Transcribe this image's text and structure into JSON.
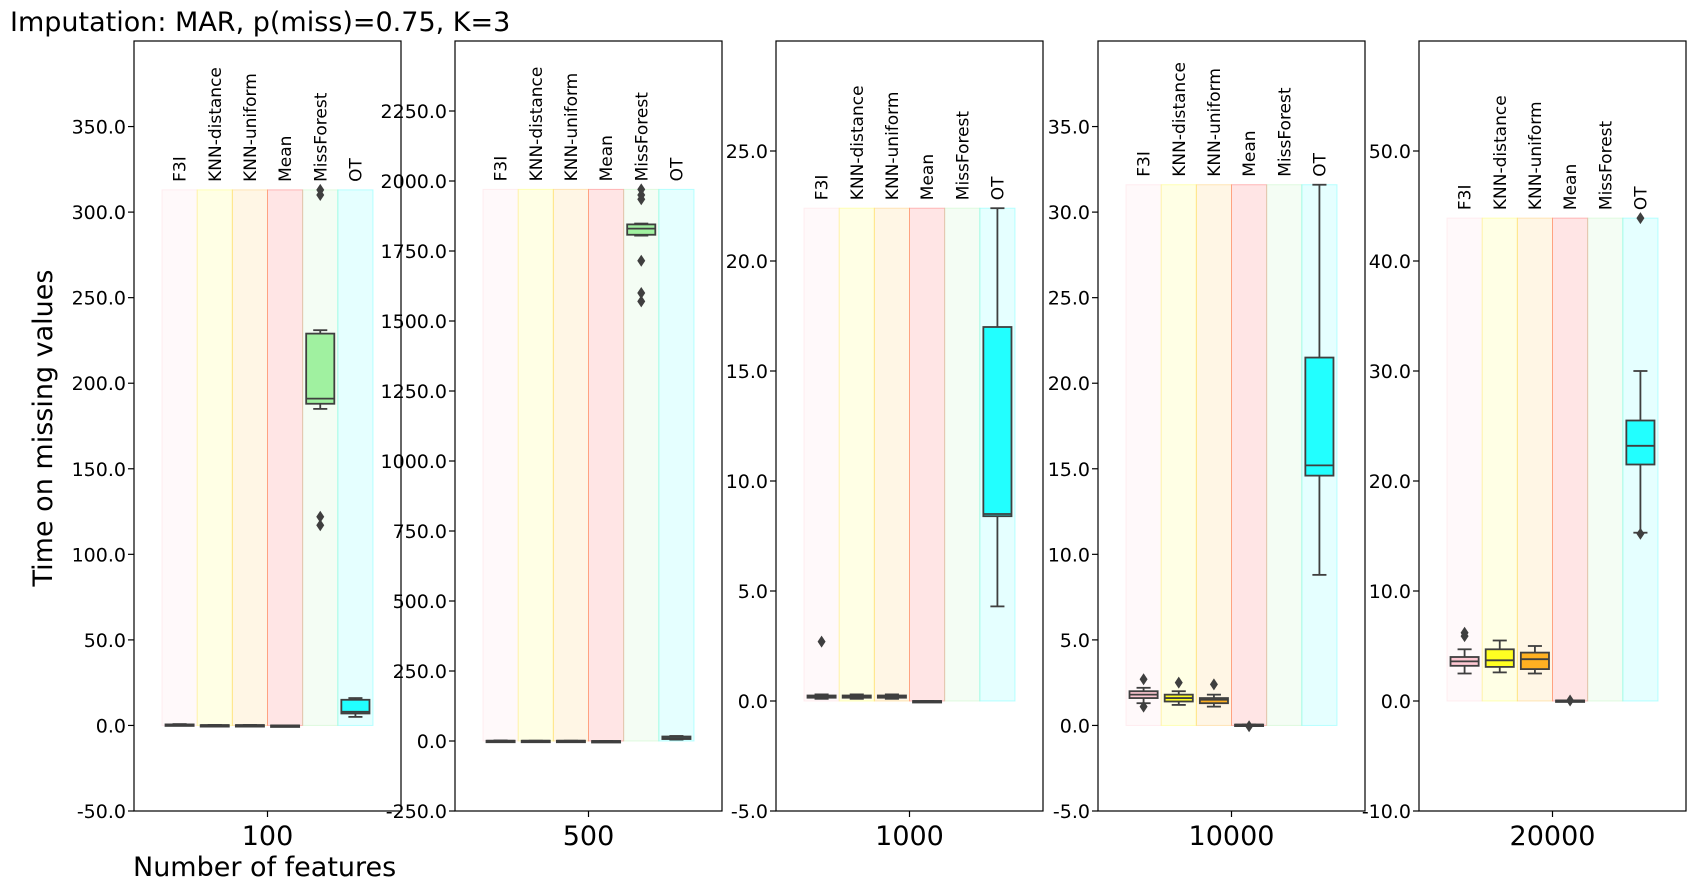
{
  "title": "Imputation: MAR, p(miss)=0.75, K=3",
  "ylabel": "Time on missing values",
  "xlabel": "Number of features",
  "methods": [
    "F3I",
    "KNN-distance",
    "KNN-uniform",
    "Mean",
    "MissForest",
    "OT"
  ],
  "colors": {
    "F3I": "#ffc0cb",
    "KNN-distance": "#ffff00",
    "KNN-uniform": "#ffa500",
    "Mean": "#ff0000",
    "MissForest": "#90ee90",
    "OT": "#00ffff",
    "box_edge": "#3f3f3f"
  },
  "chart_data": [
    {
      "type": "box",
      "category": "100",
      "ylim": [
        -50,
        400
      ],
      "yticks": [
        "-50.0",
        "0.0",
        "50.0",
        "100.0",
        "150.0",
        "200.0",
        "250.0",
        "300.0",
        "350.0"
      ],
      "band_top": 313,
      "boxes": [
        {
          "method": "F3I",
          "whislo": 0.2,
          "q1": 0.4,
          "med": 0.5,
          "q3": 0.6,
          "whishi": 0.8,
          "fliers": []
        },
        {
          "method": "KNN-distance",
          "whislo": 0.1,
          "q1": 0.1,
          "med": 0.2,
          "q3": 0.2,
          "whishi": 0.3,
          "fliers": []
        },
        {
          "method": "KNN-uniform",
          "whislo": 0.1,
          "q1": 0.1,
          "med": 0.2,
          "q3": 0.2,
          "whishi": 0.3,
          "fliers": []
        },
        {
          "method": "Mean",
          "whislo": 0.0,
          "q1": 0.0,
          "med": 0.0,
          "q3": 0.0,
          "whishi": 0.0,
          "fliers": []
        },
        {
          "method": "MissForest",
          "whislo": 185,
          "q1": 188,
          "med": 191,
          "q3": 229,
          "whishi": 231,
          "fliers": [
            117,
            122,
            310,
            313
          ]
        },
        {
          "method": "OT",
          "whislo": 5,
          "q1": 7,
          "med": 8,
          "q3": 15,
          "whishi": 16,
          "fliers": []
        }
      ]
    },
    {
      "type": "box",
      "category": "500",
      "ylim": [
        -250,
        2500
      ],
      "yticks": [
        "-250.0",
        "0.0",
        "250.0",
        "500.0",
        "750.0",
        "1000.0",
        "1250.0",
        "1500.0",
        "1750.0",
        "2000.0",
        "2250.0"
      ],
      "band_top": 1970,
      "boxes": [
        {
          "method": "F3I",
          "whislo": 0,
          "q1": 0,
          "med": 1,
          "q3": 1,
          "whishi": 2,
          "fliers": []
        },
        {
          "method": "KNN-distance",
          "whislo": 0,
          "q1": 0,
          "med": 1,
          "q3": 1,
          "whishi": 1,
          "fliers": []
        },
        {
          "method": "KNN-uniform",
          "whislo": 0,
          "q1": 0,
          "med": 1,
          "q3": 1,
          "whishi": 1,
          "fliers": []
        },
        {
          "method": "Mean",
          "whislo": 0,
          "q1": 0,
          "med": 0,
          "q3": 0,
          "whishi": 0,
          "fliers": []
        },
        {
          "method": "MissForest",
          "whislo": 1805,
          "q1": 1808,
          "med": 1830,
          "q3": 1845,
          "whishi": 1848,
          "fliers": [
            1570,
            1600,
            1715,
            1935,
            1950,
            1970
          ]
        },
        {
          "method": "OT",
          "whislo": 5,
          "q1": 7,
          "med": 10,
          "q3": 16,
          "whishi": 18,
          "fliers": []
        }
      ]
    },
    {
      "type": "box",
      "category": "1000",
      "ylim": [
        -5,
        30
      ],
      "yticks": [
        "-5.0",
        "0.0",
        "5.0",
        "10.0",
        "15.0",
        "20.0",
        "25.0"
      ],
      "band_top": 22.4,
      "boxes": [
        {
          "method": "F3I",
          "whislo": 0.1,
          "q1": 0.15,
          "med": 0.2,
          "q3": 0.25,
          "whishi": 0.3,
          "fliers": [
            2.7
          ]
        },
        {
          "method": "KNN-distance",
          "whislo": 0.1,
          "q1": 0.15,
          "med": 0.2,
          "q3": 0.25,
          "whishi": 0.3,
          "fliers": []
        },
        {
          "method": "KNN-uniform",
          "whislo": 0.1,
          "q1": 0.15,
          "med": 0.2,
          "q3": 0.25,
          "whishi": 0.3,
          "fliers": []
        },
        {
          "method": "Mean",
          "whislo": 0.0,
          "q1": 0.0,
          "med": 0.0,
          "q3": 0.0,
          "whishi": 0.0,
          "fliers": []
        },
        {
          "method": "MissForest",
          "whislo": null,
          "q1": null,
          "med": null,
          "q3": null,
          "whishi": null,
          "fliers": []
        },
        {
          "method": "OT",
          "whislo": 4.3,
          "q1": 8.4,
          "med": 8.5,
          "q3": 17.0,
          "whishi": 22.4,
          "fliers": []
        }
      ]
    },
    {
      "type": "box",
      "category": "10000",
      "ylim": [
        -5,
        40
      ],
      "yticks": [
        "-5.0",
        "0.0",
        "5.0",
        "10.0",
        "15.0",
        "20.0",
        "25.0",
        "30.0",
        "35.0"
      ],
      "band_top": 31.6,
      "boxes": [
        {
          "method": "F3I",
          "whislo": 1.3,
          "q1": 1.6,
          "med": 1.8,
          "q3": 2.0,
          "whishi": 2.2,
          "fliers": [
            1.1,
            2.7
          ]
        },
        {
          "method": "KNN-distance",
          "whislo": 1.2,
          "q1": 1.4,
          "med": 1.6,
          "q3": 1.8,
          "whishi": 2.0,
          "fliers": [
            2.5
          ]
        },
        {
          "method": "KNN-uniform",
          "whislo": 1.1,
          "q1": 1.3,
          "med": 1.5,
          "q3": 1.6,
          "whishi": 1.8,
          "fliers": [
            2.4
          ]
        },
        {
          "method": "Mean",
          "whislo": 0.05,
          "q1": 0.05,
          "med": 0.05,
          "q3": 0.05,
          "whishi": 0.05,
          "fliers": [
            -0.05
          ]
        },
        {
          "method": "MissForest",
          "whislo": null,
          "q1": null,
          "med": null,
          "q3": null,
          "whishi": null,
          "fliers": []
        },
        {
          "method": "OT",
          "whislo": 8.8,
          "q1": 14.6,
          "med": 15.2,
          "q3": 21.5,
          "whishi": 31.6,
          "fliers": []
        }
      ]
    },
    {
      "type": "box",
      "category": "20000",
      "ylim": [
        -10,
        60
      ],
      "yticks": [
        "-10.0",
        "0.0",
        "10.0",
        "20.0",
        "30.0",
        "40.0",
        "50.0"
      ],
      "band_top": 43.9,
      "boxes": [
        {
          "method": "F3I",
          "whislo": 2.5,
          "q1": 3.2,
          "med": 3.6,
          "q3": 4.0,
          "whishi": 4.7,
          "fliers": [
            5.9,
            6.2
          ]
        },
        {
          "method": "KNN-distance",
          "whislo": 2.6,
          "q1": 3.1,
          "med": 3.7,
          "q3": 4.7,
          "whishi": 5.5,
          "fliers": []
        },
        {
          "method": "KNN-uniform",
          "whislo": 2.5,
          "q1": 2.9,
          "med": 3.8,
          "q3": 4.4,
          "whishi": 5.0,
          "fliers": []
        },
        {
          "method": "Mean",
          "whislo": 0.05,
          "q1": 0.05,
          "med": 0.05,
          "q3": 0.05,
          "whishi": 0.05,
          "fliers": [
            0.05
          ]
        },
        {
          "method": "MissForest",
          "whislo": null,
          "q1": null,
          "med": null,
          "q3": null,
          "whishi": null,
          "fliers": []
        },
        {
          "method": "OT",
          "whislo": 15.3,
          "q1": 21.5,
          "med": 23.2,
          "q3": 25.5,
          "whishi": 30.0,
          "fliers": [
            15.2,
            43.9
          ]
        }
      ]
    }
  ]
}
